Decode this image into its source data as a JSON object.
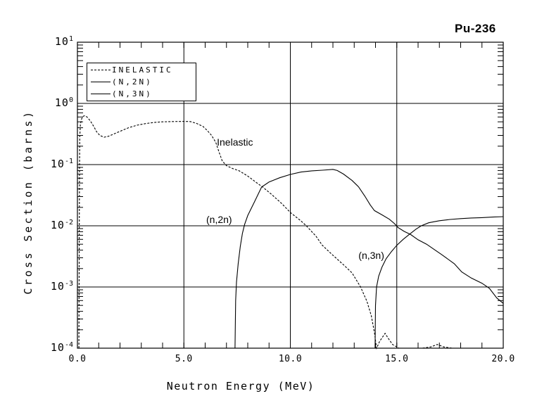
{
  "page_title": "Pu-236",
  "colors": {
    "foreground": "#000000",
    "background": "#ffffff"
  },
  "chart_data": {
    "type": "line",
    "title": "Pu-236",
    "xlabel": "Neutron Energy (MeV)",
    "ylabel": "Cross Section (barns)",
    "grid": true,
    "x_axis": {
      "min": 0,
      "max": 20,
      "minor_step": 1,
      "tick_values": [
        0,
        5,
        10,
        15,
        20
      ],
      "tick_labels": [
        "0.0",
        "5.0",
        "10.0",
        "15.0",
        "20.0"
      ],
      "gridline_values": [
        5,
        10,
        15
      ]
    },
    "y_axis": {
      "scale": "log",
      "min": 0.0001,
      "max": 10,
      "tick_exponents": [
        1,
        0,
        -1,
        -2,
        -3,
        -4
      ],
      "tick_base": "10",
      "gridline_exponents": [
        0,
        -1,
        -2,
        -3
      ]
    },
    "legend": {
      "position": "top-left",
      "entries": [
        {
          "label": "INELASTIC",
          "style": "dashed"
        },
        {
          "label": "(N,2N)",
          "style": "solid"
        },
        {
          "label": "(N,3N)",
          "style": "solid"
        }
      ]
    },
    "annotations": [
      {
        "text": "Inelastic",
        "x": 6.55,
        "y": 0.23
      },
      {
        "text": "(n,2n)",
        "x": 6.05,
        "y": 0.0125
      },
      {
        "text": "(n,3n)",
        "x": 13.2,
        "y": 0.0032
      }
    ],
    "series": [
      {
        "name": "INELASTIC",
        "style": "dashed",
        "points": [
          [
            0.07,
            0.0001
          ],
          [
            0.08,
            0.001
          ],
          [
            0.09,
            0.012
          ],
          [
            0.1,
            0.1
          ],
          [
            0.11,
            0.28
          ],
          [
            0.14,
            0.45
          ],
          [
            0.2,
            0.56
          ],
          [
            0.28,
            0.62
          ],
          [
            0.35,
            0.63
          ],
          [
            0.45,
            0.6
          ],
          [
            0.6,
            0.52
          ],
          [
            0.75,
            0.43
          ],
          [
            0.9,
            0.345
          ],
          [
            1.05,
            0.3
          ],
          [
            1.25,
            0.28
          ],
          [
            1.45,
            0.29
          ],
          [
            1.7,
            0.315
          ],
          [
            2.0,
            0.35
          ],
          [
            2.4,
            0.4
          ],
          [
            2.8,
            0.44
          ],
          [
            3.2,
            0.468
          ],
          [
            3.6,
            0.488
          ],
          [
            4.0,
            0.5
          ],
          [
            4.5,
            0.505
          ],
          [
            5.0,
            0.508
          ],
          [
            5.3,
            0.505
          ],
          [
            5.6,
            0.47
          ],
          [
            5.9,
            0.42
          ],
          [
            6.1,
            0.36
          ],
          [
            6.3,
            0.3
          ],
          [
            6.5,
            0.23
          ],
          [
            6.65,
            0.16
          ],
          [
            6.8,
            0.115
          ],
          [
            7.0,
            0.096
          ],
          [
            7.3,
            0.086
          ],
          [
            7.6,
            0.079
          ],
          [
            8.0,
            0.065
          ],
          [
            8.4,
            0.051
          ],
          [
            8.7,
            0.043
          ],
          [
            9.1,
            0.033
          ],
          [
            9.6,
            0.023
          ],
          [
            10.0,
            0.0165
          ],
          [
            10.5,
            0.012
          ],
          [
            10.75,
            0.01
          ],
          [
            11.2,
            0.0068
          ],
          [
            11.5,
            0.0048
          ],
          [
            12.0,
            0.0033
          ],
          [
            12.5,
            0.0023
          ],
          [
            12.9,
            0.0017
          ],
          [
            13.3,
            0.001
          ],
          [
            13.6,
            0.00058
          ],
          [
            13.8,
            0.00034
          ],
          [
            13.95,
            0.00018
          ],
          [
            14.05,
            0.0001
          ],
          [
            14.2,
            0.00013
          ],
          [
            14.45,
            0.000175
          ],
          [
            14.6,
            0.000145
          ],
          [
            14.8,
            0.000115
          ],
          [
            15.1,
            0.0001
          ],
          [
            16.2,
            0.0001
          ],
          [
            16.6,
            0.000105
          ],
          [
            16.9,
            0.000115
          ],
          [
            17.2,
            0.000105
          ],
          [
            17.6,
            0.0001
          ]
        ]
      },
      {
        "name": "(N,2N)",
        "style": "solid",
        "points": [
          [
            7.4,
            0.0001
          ],
          [
            7.43,
            0.0006
          ],
          [
            7.47,
            0.0012
          ],
          [
            7.55,
            0.0024
          ],
          [
            7.65,
            0.0046
          ],
          [
            7.75,
            0.0075
          ],
          [
            7.85,
            0.0105
          ],
          [
            8.0,
            0.0147
          ],
          [
            8.3,
            0.024
          ],
          [
            8.65,
            0.043
          ],
          [
            9.0,
            0.052
          ],
          [
            9.5,
            0.061
          ],
          [
            10.0,
            0.069
          ],
          [
            10.5,
            0.0755
          ],
          [
            11.0,
            0.079
          ],
          [
            11.5,
            0.081
          ],
          [
            12.0,
            0.0835
          ],
          [
            12.2,
            0.08
          ],
          [
            12.5,
            0.07
          ],
          [
            12.9,
            0.055
          ],
          [
            13.2,
            0.0435
          ],
          [
            13.5,
            0.0305
          ],
          [
            13.75,
            0.022
          ],
          [
            13.95,
            0.0177
          ],
          [
            14.3,
            0.0151
          ],
          [
            14.65,
            0.0128
          ],
          [
            14.9,
            0.0108
          ],
          [
            15.05,
            0.0094
          ],
          [
            15.35,
            0.0081
          ],
          [
            15.65,
            0.0072
          ],
          [
            16.0,
            0.0059
          ],
          [
            16.4,
            0.005
          ],
          [
            16.8,
            0.004
          ],
          [
            17.1,
            0.0034
          ],
          [
            17.7,
            0.0024
          ],
          [
            18.05,
            0.00176
          ],
          [
            18.5,
            0.0014
          ],
          [
            19.0,
            0.00115
          ],
          [
            19.35,
            0.00095
          ],
          [
            19.7,
            0.00066
          ],
          [
            20.0,
            0.00054
          ]
        ]
      },
      {
        "name": "(N,3N)",
        "style": "solid",
        "points": [
          [
            13.98,
            0.0001
          ],
          [
            14.0,
            0.0005
          ],
          [
            14.05,
            0.001
          ],
          [
            14.15,
            0.0015
          ],
          [
            14.3,
            0.0021
          ],
          [
            14.5,
            0.0029
          ],
          [
            14.75,
            0.0038
          ],
          [
            15.0,
            0.0048
          ],
          [
            15.3,
            0.006
          ],
          [
            15.6,
            0.0073
          ],
          [
            15.9,
            0.0088
          ],
          [
            16.15,
            0.01
          ],
          [
            16.5,
            0.0112
          ],
          [
            17.0,
            0.0121
          ],
          [
            17.5,
            0.0127
          ],
          [
            18.0,
            0.0131
          ],
          [
            18.5,
            0.0134
          ],
          [
            19.0,
            0.0136
          ],
          [
            19.5,
            0.0139
          ],
          [
            20.0,
            0.0141
          ]
        ]
      }
    ]
  }
}
